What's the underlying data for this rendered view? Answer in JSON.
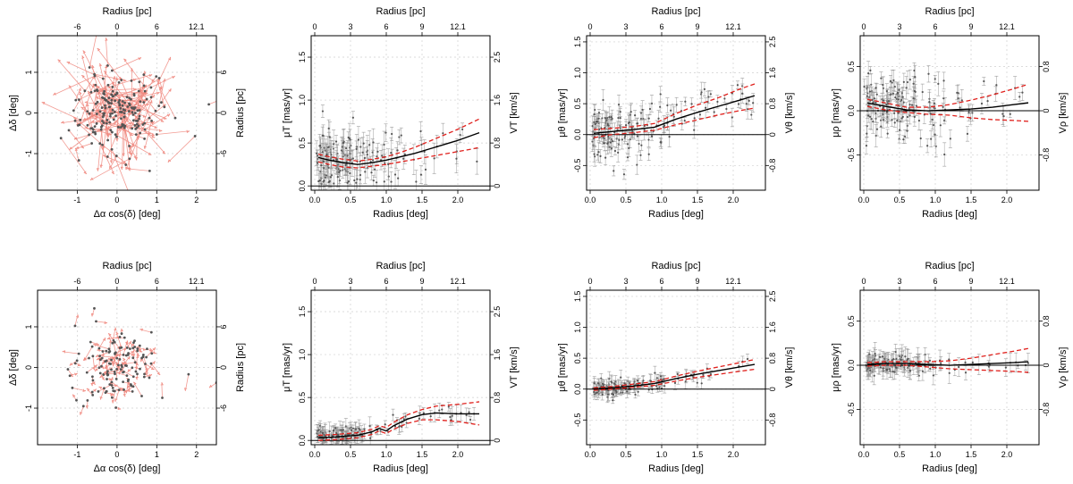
{
  "figure": {
    "rows": 2,
    "cols": 4
  },
  "labels": {
    "radius_deg": "Radius [deg]",
    "radius_pc": "Radius [pc]",
    "dalpha": "Δα cos(δ) [deg]",
    "ddelta": "Δδ [deg]",
    "muT": "μT [mas/yr]",
    "VT": "VT [km/s]",
    "mutheta": "μθ [mas/yr]",
    "Vtheta": "Vθ [km/s]",
    "murho": "μρ [mas/yr]",
    "Vrho": "Vρ [km/s]"
  },
  "colors": {
    "points": "#555555",
    "vectors": "#f08a80",
    "fit": "#000000",
    "band": "#e0201c",
    "errorbars": "#9a9a9a"
  },
  "chart_data": [
    {
      "type": "scatter",
      "id": "map-top",
      "xlabel_key": "dalpha",
      "ylabel_key": "ddelta",
      "top_label_key": "radius_pc",
      "right_label_key": "radius_pc",
      "xlim": [
        -2.0,
        2.5
      ],
      "ylim": [
        -1.9,
        1.9
      ],
      "x_ticks": [
        "-1",
        "0",
        "1",
        "2"
      ],
      "x_tick_vals": [
        -1,
        0,
        1,
        2
      ],
      "y_ticks": [
        "-1",
        "0",
        "1"
      ],
      "y_tick_vals": [
        -1,
        0,
        1
      ],
      "top_ticks": [
        "-6",
        "0",
        "6",
        "12.1"
      ],
      "top_tick_vals": [
        -1,
        0,
        1,
        2
      ],
      "right_ticks": [
        "-6",
        "0",
        "6"
      ],
      "right_tick_vals": [
        -1,
        0,
        1
      ],
      "vector_scale": "large"
    },
    {
      "type": "scatter",
      "id": "muT-top",
      "xlabel_key": "radius_deg",
      "ylabel_key": "muT",
      "top_label_key": "radius_pc",
      "right_label_key": "VT",
      "xlim": [
        -0.05,
        2.45
      ],
      "ylim": [
        -0.05,
        1.75
      ],
      "x_ticks": [
        "0.0",
        "0.5",
        "1.0",
        "1.5",
        "2.0"
      ],
      "x_tick_vals": [
        0,
        0.5,
        1,
        1.5,
        2
      ],
      "y_ticks": [
        "0.0",
        "0.5",
        "1.0",
        "1.5"
      ],
      "y_tick_vals": [
        0,
        0.5,
        1,
        1.5
      ],
      "top_ticks": [
        "0",
        "3",
        "6",
        "9",
        "12.1"
      ],
      "top_tick_vals": [
        0,
        0.5,
        1,
        1.5,
        2
      ],
      "right_ticks": [
        "0",
        "0.8",
        "1.6",
        "2.5"
      ],
      "right_tick_vals": [
        0,
        0.5,
        1,
        1.5
      ],
      "zero_line": 0,
      "fit": {
        "x": [
          0.05,
          0.2,
          0.4,
          0.6,
          0.8,
          1.0,
          1.2,
          1.4,
          1.6,
          1.8,
          2.0,
          2.2,
          2.3
        ],
        "y": [
          0.33,
          0.3,
          0.27,
          0.25,
          0.27,
          0.3,
          0.34,
          0.38,
          0.43,
          0.48,
          0.53,
          0.59,
          0.62
        ]
      },
      "band_upper": [
        0.37,
        0.34,
        0.31,
        0.29,
        0.31,
        0.34,
        0.39,
        0.45,
        0.52,
        0.59,
        0.66,
        0.74,
        0.78
      ],
      "band_lower": [
        0.28,
        0.25,
        0.22,
        0.21,
        0.23,
        0.25,
        0.28,
        0.31,
        0.34,
        0.37,
        0.4,
        0.43,
        0.45
      ],
      "scatter_profile": "muT_wide"
    },
    {
      "type": "scatter",
      "id": "mutheta-top",
      "xlabel_key": "radius_deg",
      "ylabel_key": "mutheta",
      "top_label_key": "radius_pc",
      "right_label_key": "Vtheta",
      "xlim": [
        -0.05,
        2.45
      ],
      "ylim": [
        -0.9,
        1.6
      ],
      "x_ticks": [
        "0.0",
        "0.5",
        "1.0",
        "1.5",
        "2.0"
      ],
      "x_tick_vals": [
        0,
        0.5,
        1,
        1.5,
        2
      ],
      "y_ticks": [
        "-0.5",
        "0.0",
        "0.5",
        "1.0",
        "1.5"
      ],
      "y_tick_vals": [
        -0.5,
        0,
        0.5,
        1,
        1.5
      ],
      "top_ticks": [
        "0",
        "3",
        "6",
        "9",
        "12.1"
      ],
      "top_tick_vals": [
        0,
        0.5,
        1,
        1.5,
        2
      ],
      "right_ticks": [
        "-0.8",
        "0",
        "0.8",
        "1.6",
        "2.5"
      ],
      "right_tick_vals": [
        -0.5,
        0,
        0.5,
        1,
        1.5
      ],
      "zero_line": 0,
      "fit": {
        "x": [
          0.05,
          0.3,
          0.6,
          0.9,
          1.2,
          1.5,
          1.8,
          2.1,
          2.3
        ],
        "y": [
          0.02,
          0.05,
          0.08,
          0.12,
          0.25,
          0.36,
          0.46,
          0.56,
          0.63
        ]
      },
      "band_upper": [
        0.08,
        0.1,
        0.13,
        0.18,
        0.34,
        0.48,
        0.6,
        0.74,
        0.82
      ],
      "band_lower": [
        -0.05,
        0.0,
        0.03,
        0.07,
        0.16,
        0.24,
        0.32,
        0.39,
        0.43
      ],
      "scatter_profile": "mutheta_wide"
    },
    {
      "type": "scatter",
      "id": "murho-top",
      "xlabel_key": "radius_deg",
      "ylabel_key": "murho",
      "top_label_key": "radius_pc",
      "right_label_key": "Vrho",
      "xlim": [
        -0.05,
        2.45
      ],
      "ylim": [
        -0.9,
        0.85
      ],
      "x_ticks": [
        "0.0",
        "0.5",
        "1.0",
        "1.5",
        "2.0"
      ],
      "x_tick_vals": [
        0,
        0.5,
        1,
        1.5,
        2
      ],
      "y_ticks": [
        "-0.5",
        "0.0",
        "0.5"
      ],
      "y_tick_vals": [
        -0.5,
        0,
        0.5
      ],
      "top_ticks": [
        "0",
        "3",
        "6",
        "9",
        "12.1"
      ],
      "top_tick_vals": [
        0,
        0.5,
        1,
        1.5,
        2
      ],
      "right_ticks": [
        "-0.8",
        "0",
        "0.8"
      ],
      "right_tick_vals": [
        -0.5,
        0,
        0.5
      ],
      "zero_line": 0,
      "fit": {
        "x": [
          0.05,
          0.3,
          0.6,
          0.9,
          1.2,
          1.5,
          1.8,
          2.1,
          2.3
        ],
        "y": [
          0.09,
          0.05,
          0.01,
          0.0,
          0.01,
          0.02,
          0.04,
          0.07,
          0.09
        ]
      },
      "band_upper": [
        0.13,
        0.09,
        0.04,
        0.04,
        0.07,
        0.12,
        0.18,
        0.25,
        0.3
      ],
      "band_lower": [
        0.05,
        0.01,
        -0.02,
        -0.04,
        -0.05,
        -0.08,
        -0.1,
        -0.11,
        -0.12
      ],
      "scatter_profile": "murho_wide"
    },
    {
      "type": "scatter",
      "id": "map-bottom",
      "xlabel_key": "dalpha",
      "ylabel_key": "ddelta",
      "top_label_key": "radius_pc",
      "right_label_key": "radius_pc",
      "xlim": [
        -2.0,
        2.5
      ],
      "ylim": [
        -1.9,
        1.9
      ],
      "x_ticks": [
        "-1",
        "0",
        "1",
        "2"
      ],
      "x_tick_vals": [
        -1,
        0,
        1,
        2
      ],
      "y_ticks": [
        "-1",
        "0",
        "1"
      ],
      "y_tick_vals": [
        -1,
        0,
        1
      ],
      "top_ticks": [
        "-6",
        "0",
        "6",
        "12.1"
      ],
      "top_tick_vals": [
        -1,
        0,
        1,
        2
      ],
      "right_ticks": [
        "-6",
        "0",
        "6"
      ],
      "right_tick_vals": [
        -1,
        0,
        1
      ],
      "vector_scale": "small"
    },
    {
      "type": "scatter",
      "id": "muT-bottom",
      "xlabel_key": "radius_deg",
      "ylabel_key": "muT",
      "top_label_key": "radius_pc",
      "right_label_key": "VT",
      "xlim": [
        -0.05,
        2.45
      ],
      "ylim": [
        -0.05,
        1.75
      ],
      "x_ticks": [
        "0.0",
        "0.5",
        "1.0",
        "1.5",
        "2.0"
      ],
      "x_tick_vals": [
        0,
        0.5,
        1,
        1.5,
        2
      ],
      "y_ticks": [
        "0.0",
        "0.5",
        "1.0",
        "1.5"
      ],
      "y_tick_vals": [
        0,
        0.5,
        1,
        1.5
      ],
      "top_ticks": [
        "0",
        "3",
        "6",
        "9",
        "12.1"
      ],
      "top_tick_vals": [
        0,
        0.5,
        1,
        1.5,
        2
      ],
      "right_ticks": [
        "0",
        "0.8",
        "1.6",
        "2.5"
      ],
      "right_tick_vals": [
        0,
        0.5,
        1,
        1.5
      ],
      "zero_line": 0,
      "fit": {
        "x": [
          0.05,
          0.3,
          0.6,
          0.8,
          0.9,
          1.0,
          1.1,
          1.3,
          1.5,
          1.7,
          2.0,
          2.3
        ],
        "y": [
          0.03,
          0.04,
          0.06,
          0.1,
          0.14,
          0.11,
          0.17,
          0.25,
          0.3,
          0.32,
          0.31,
          0.31
        ]
      },
      "band_upper": [
        0.06,
        0.07,
        0.09,
        0.13,
        0.17,
        0.15,
        0.21,
        0.3,
        0.36,
        0.4,
        0.42,
        0.45
      ],
      "band_lower": [
        0.0,
        0.01,
        0.03,
        0.07,
        0.11,
        0.08,
        0.13,
        0.2,
        0.24,
        0.24,
        0.22,
        0.18
      ],
      "scatter_profile": "muT_narrow"
    },
    {
      "type": "scatter",
      "id": "mutheta-bottom",
      "xlabel_key": "radius_deg",
      "ylabel_key": "mutheta",
      "top_label_key": "radius_pc",
      "right_label_key": "Vtheta",
      "xlim": [
        -0.05,
        2.45
      ],
      "ylim": [
        -0.9,
        1.6
      ],
      "x_ticks": [
        "0.0",
        "0.5",
        "1.0",
        "1.5",
        "2.0"
      ],
      "x_tick_vals": [
        0,
        0.5,
        1,
        1.5,
        2
      ],
      "y_ticks": [
        "-0.5",
        "0.0",
        "0.5",
        "1.0",
        "1.5"
      ],
      "y_tick_vals": [
        -0.5,
        0,
        0.5,
        1,
        1.5
      ],
      "top_ticks": [
        "0",
        "3",
        "6",
        "9",
        "12.1"
      ],
      "top_tick_vals": [
        0,
        0.5,
        1,
        1.5,
        2
      ],
      "right_ticks": [
        "-0.8",
        "0",
        "0.8",
        "1.6",
        "2.5"
      ],
      "right_tick_vals": [
        -0.5,
        0,
        0.5,
        1,
        1.5
      ],
      "zero_line": 0,
      "fit": {
        "x": [
          0.05,
          0.3,
          0.6,
          0.9,
          1.2,
          1.5,
          1.8,
          2.1,
          2.3
        ],
        "y": [
          0.0,
          0.02,
          0.05,
          0.09,
          0.17,
          0.24,
          0.3,
          0.36,
          0.4
        ]
      },
      "band_upper": [
        0.02,
        0.04,
        0.08,
        0.12,
        0.21,
        0.29,
        0.36,
        0.43,
        0.48
      ],
      "band_lower": [
        -0.02,
        0.0,
        0.03,
        0.06,
        0.13,
        0.19,
        0.24,
        0.29,
        0.32
      ],
      "scatter_profile": "mutheta_narrow"
    },
    {
      "type": "scatter",
      "id": "murho-bottom",
      "xlabel_key": "radius_deg",
      "ylabel_key": "murho",
      "top_label_key": "radius_pc",
      "right_label_key": "Vrho",
      "xlim": [
        -0.05,
        2.45
      ],
      "ylim": [
        -0.9,
        0.85
      ],
      "x_ticks": [
        "0.0",
        "0.5",
        "1.0",
        "1.5",
        "2.0"
      ],
      "x_tick_vals": [
        0,
        0.5,
        1,
        1.5,
        2
      ],
      "y_ticks": [
        "-0.5",
        "0.0",
        "0.5"
      ],
      "y_tick_vals": [
        -0.5,
        0,
        0.5
      ],
      "top_ticks": [
        "0",
        "3",
        "6",
        "9",
        "12.1"
      ],
      "top_tick_vals": [
        0,
        0.5,
        1,
        1.5,
        2
      ],
      "right_ticks": [
        "-0.8",
        "0",
        "0.8"
      ],
      "right_tick_vals": [
        -0.5,
        0,
        0.5
      ],
      "zero_line": 0,
      "fit": {
        "x": [
          0.05,
          0.3,
          0.6,
          0.9,
          1.2,
          1.5,
          1.8,
          2.1,
          2.3
        ],
        "y": [
          0.01,
          0.02,
          0.02,
          0.01,
          0.0,
          0.01,
          0.02,
          0.03,
          0.04
        ]
      },
      "band_upper": [
        0.03,
        0.04,
        0.04,
        0.04,
        0.05,
        0.08,
        0.12,
        0.16,
        0.19
      ],
      "band_lower": [
        -0.01,
        0.0,
        0.0,
        -0.02,
        -0.04,
        -0.05,
        -0.06,
        -0.07,
        -0.08
      ],
      "scatter_profile": "murho_narrow"
    }
  ]
}
